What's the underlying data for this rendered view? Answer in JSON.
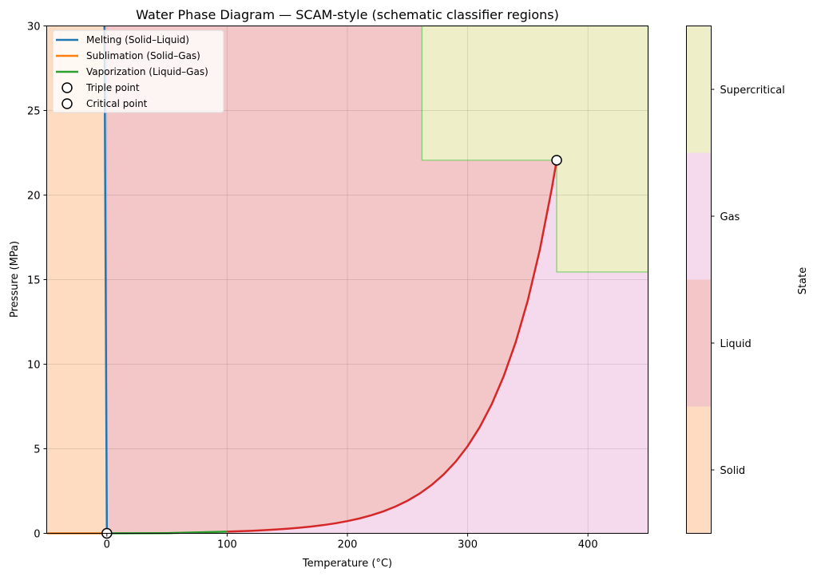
{
  "chart_data": {
    "type": "line",
    "title": "Water Phase Diagram — SCAM-style (schematic classifier regions)",
    "xlabel": "Temperature (°C)",
    "ylabel": "Pressure (MPa)",
    "xlim": [
      -50,
      450
    ],
    "ylim": [
      0,
      30
    ],
    "xticks": [
      0,
      100,
      200,
      300,
      400
    ],
    "yticks": [
      0,
      5,
      10,
      15,
      20,
      25,
      30
    ],
    "grid": true,
    "legend_position": "top-left",
    "colors": {
      "solid": "#fddcc2",
      "liquid": "#f3c6c8",
      "gas": "#f5daee",
      "supercritical": "#eeeec8",
      "region_edge": "#7ccf6a",
      "curve": "#d62728",
      "melting": "#1f77b4",
      "sublimation": "#ff7f0e",
      "vaporization": "#2ca02c"
    },
    "regions": [
      {
        "state": "Solid",
        "polygon": [
          [
            -50,
            0
          ],
          [
            0.01,
            0
          ],
          [
            -2,
            30
          ],
          [
            -50,
            30
          ]
        ]
      },
      {
        "state": "Liquid",
        "polygon": [
          [
            0.01,
            0
          ],
          [
            -2,
            30
          ],
          [
            450,
            30
          ],
          [
            450,
            0
          ]
        ]
      },
      {
        "state": "Supercritical",
        "polygon": [
          [
            262,
            22.06
          ],
          [
            374,
            22.06
          ],
          [
            374,
            15.45
          ],
          [
            450,
            15.45
          ],
          [
            450,
            30
          ],
          [
            262,
            30
          ]
        ]
      }
    ],
    "series": [
      {
        "name": "Melting (Solid–Liquid)",
        "legend": true,
        "color": "#1f77b4",
        "x": [
          0.01,
          -2
        ],
        "y": [
          0.0006,
          30
        ]
      },
      {
        "name": "Sublimation (Solid–Gas)",
        "legend": true,
        "color": "#ff7f0e",
        "x": [
          -50,
          0.01
        ],
        "y": [
          1e-05,
          0.0006
        ]
      },
      {
        "name": "Vaporization (Liquid–Gas)",
        "legend": true,
        "color": "#2ca02c",
        "x": [
          0.01,
          50,
          100
        ],
        "y": [
          0.0006,
          0.0124,
          0.101
        ]
      },
      {
        "name": "boundary",
        "legend": false,
        "color": "#d62728",
        "x": [
          100,
          110,
          120,
          130,
          140,
          150,
          160,
          170,
          180,
          190,
          200,
          210,
          220,
          230,
          240,
          250,
          260,
          270,
          280,
          290,
          300,
          310,
          320,
          330,
          340,
          350,
          360,
          370,
          374
        ],
        "y": [
          0.101,
          0.123,
          0.15,
          0.182,
          0.222,
          0.27,
          0.329,
          0.4,
          0.487,
          0.593,
          0.722,
          0.879,
          1.07,
          1.302,
          1.585,
          1.929,
          2.348,
          2.858,
          3.479,
          4.235,
          5.155,
          6.275,
          7.638,
          9.297,
          11.317,
          13.775,
          16.767,
          20.41,
          22.06
        ]
      }
    ],
    "points": [
      {
        "name": "Triple point",
        "x": 0.01,
        "y": 0.000612
      },
      {
        "name": "Critical point",
        "x": 374,
        "y": 22.06
      }
    ],
    "colorbar": {
      "label": "State",
      "ticks": [
        "Solid",
        "Liquid",
        "Gas",
        "Supercritical"
      ]
    }
  }
}
